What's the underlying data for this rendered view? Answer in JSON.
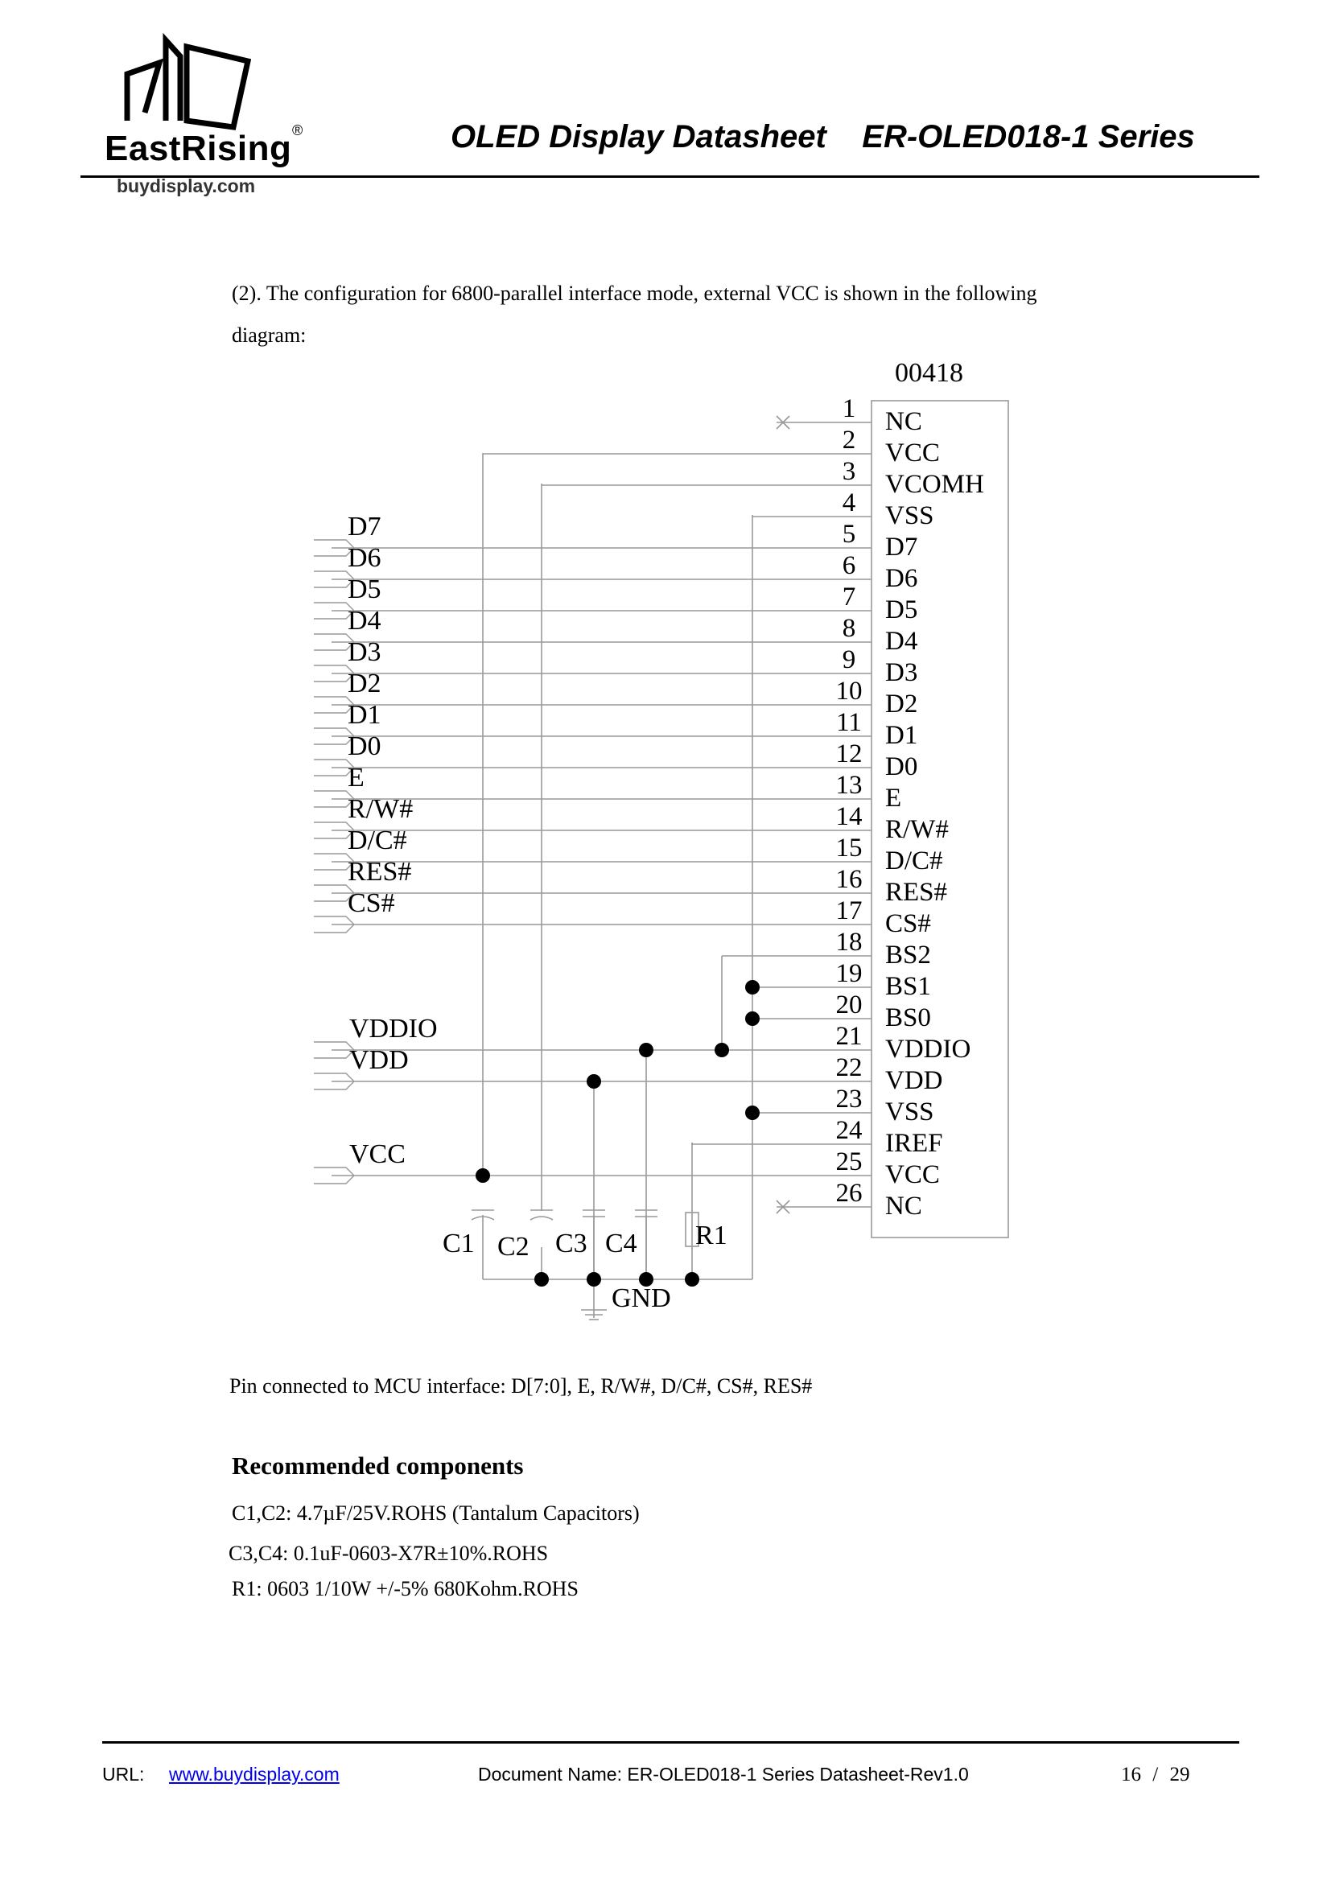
{
  "header": {
    "logo_brand": "EastRising",
    "logo_registered": "®",
    "logo_site": "buydisplay.com",
    "title": "OLED Display Datasheet    ER-OLED018-1 Series"
  },
  "intro": {
    "line1": "(2). The configuration for 6800-parallel interface mode, external VCC is shown in the following",
    "line2": "diagram:"
  },
  "schematic": {
    "part_number": "00418",
    "pins": [
      {
        "num": "1",
        "name": "NC"
      },
      {
        "num": "2",
        "name": "VCC"
      },
      {
        "num": "3",
        "name": "VCOMH"
      },
      {
        "num": "4",
        "name": "VSS"
      },
      {
        "num": "5",
        "name": "D7"
      },
      {
        "num": "6",
        "name": "D6"
      },
      {
        "num": "7",
        "name": "D5"
      },
      {
        "num": "8",
        "name": "D4"
      },
      {
        "num": "9",
        "name": "D3"
      },
      {
        "num": "10",
        "name": "D2"
      },
      {
        "num": "11",
        "name": "D1"
      },
      {
        "num": "12",
        "name": "D0"
      },
      {
        "num": "13",
        "name": "E"
      },
      {
        "num": "14",
        "name": "R/W#"
      },
      {
        "num": "15",
        "name": "D/C#"
      },
      {
        "num": "16",
        "name": "RES#"
      },
      {
        "num": "17",
        "name": "CS#"
      },
      {
        "num": "18",
        "name": "BS2"
      },
      {
        "num": "19",
        "name": "BS1"
      },
      {
        "num": "20",
        "name": "BS0"
      },
      {
        "num": "21",
        "name": "VDDIO"
      },
      {
        "num": "22",
        "name": "VDD"
      },
      {
        "num": "23",
        "name": "VSS"
      },
      {
        "num": "24",
        "name": "IREF"
      },
      {
        "num": "25",
        "name": "VCC"
      },
      {
        "num": "26",
        "name": "NC"
      }
    ],
    "signals": [
      "D7",
      "D6",
      "D5",
      "D4",
      "D3",
      "D2",
      "D1",
      "D0",
      "E",
      "R/W#",
      "D/C#",
      "RES#",
      "CS#"
    ],
    "power_inputs": [
      "VDDIO",
      "VDD",
      "VCC"
    ],
    "components": [
      "C1",
      "C2",
      "C3",
      "C4",
      "R1"
    ],
    "ground_label": "GND"
  },
  "pin_note": "Pin connected to MCU interface: D[7:0], E, R/W#, D/C#, CS#, RES#",
  "recommended": {
    "heading": "Recommended components",
    "lines": [
      "C1,C2: 4.7µF/25V.ROHS (Tantalum Capacitors)",
      "C3,C4: 0.1uF-0603-X7R±10%.ROHS",
      "R1: 0603 1/10W +/-5% 680Kohm.ROHS"
    ]
  },
  "footer": {
    "url_label": "URL:",
    "url": "www.buydisplay.com",
    "doc_name": "Document Name: ER-OLED018-1 Series Datasheet-Rev1.0",
    "page_current": "16",
    "page_sep": "/",
    "page_total": "29"
  }
}
